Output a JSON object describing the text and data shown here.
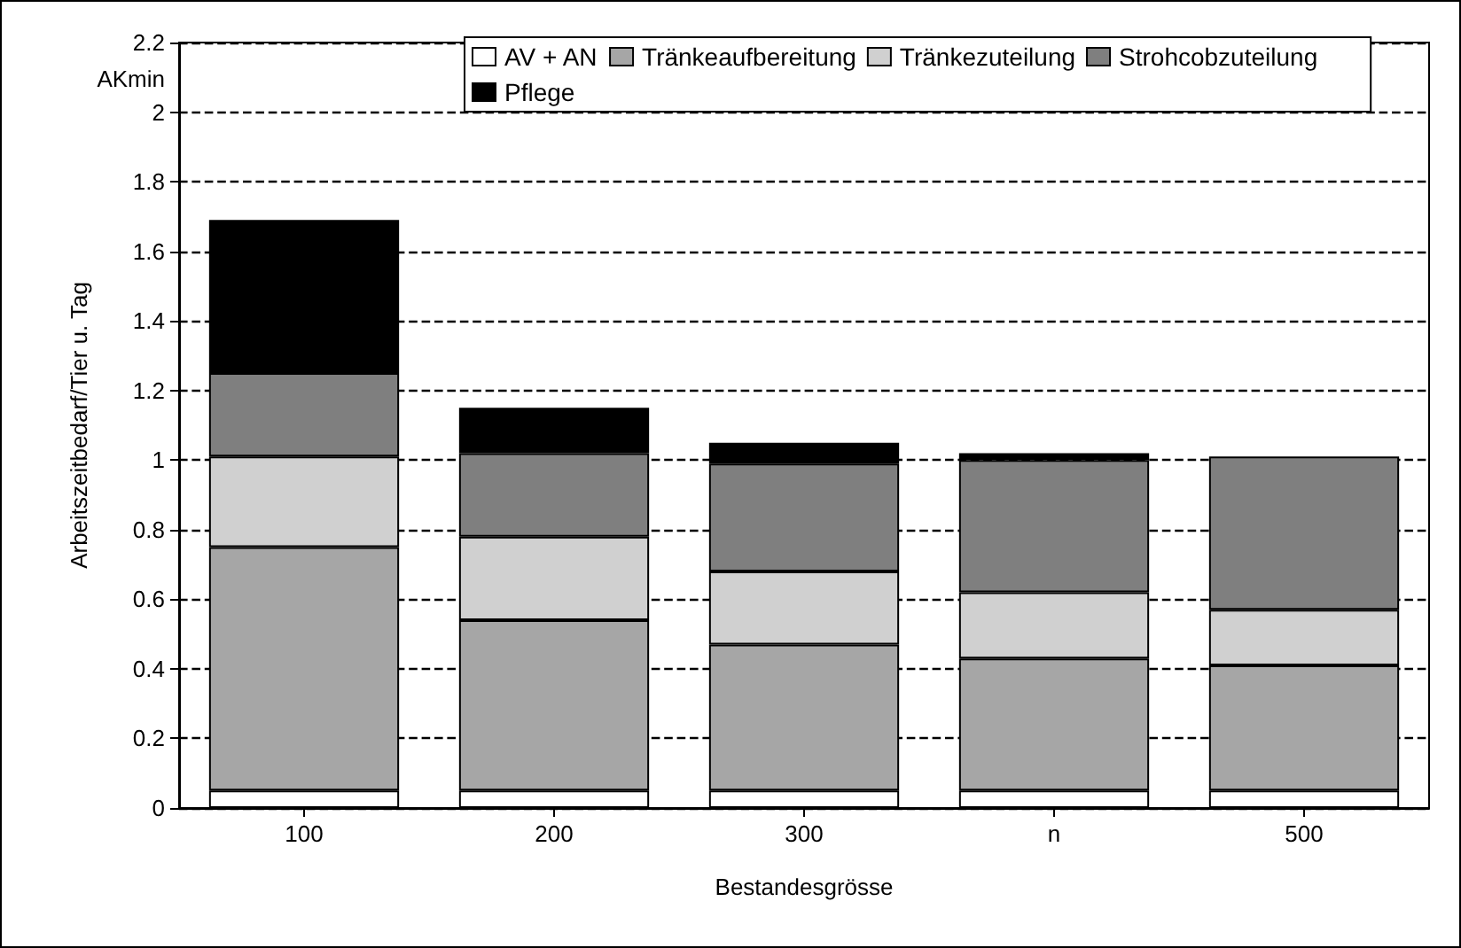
{
  "chart_data": {
    "type": "bar",
    "stacked": true,
    "xlabel": "Bestandesgrösse",
    "ylabel": "Arbeitszeitbedarf/Tier u. Tag",
    "annotations": [
      "AKmin"
    ],
    "categories": [
      "100",
      "200",
      "300",
      "n",
      "500"
    ],
    "series": [
      {
        "name": "AV + AN",
        "color": "#ffffff",
        "values": [
          0.05,
          0.05,
          0.05,
          0.05,
          0.05
        ]
      },
      {
        "name": "Tränkeaufbereitung",
        "color": "#a6a6a6",
        "values": [
          0.7,
          0.49,
          0.42,
          0.38,
          0.36
        ]
      },
      {
        "name": "Tränkezuteilung",
        "color": "#d0d0d0",
        "values": [
          0.26,
          0.24,
          0.21,
          0.19,
          0.16
        ]
      },
      {
        "name": "Strohcobzuteilung",
        "color": "#7f7f7f",
        "values": [
          0.24,
          0.24,
          0.31,
          0.38,
          0.44
        ]
      },
      {
        "name": "Pflege",
        "color": "#000000",
        "values": [
          0.44,
          0.13,
          0.06,
          0.02,
          null
        ]
      }
    ],
    "ylim": [
      0,
      2.2
    ],
    "yticks": [
      0,
      0.2,
      0.4,
      0.6,
      0.8,
      1,
      1.2,
      1.4,
      1.6,
      1.8,
      2,
      2.2
    ],
    "grid": "y",
    "legend": "top"
  }
}
